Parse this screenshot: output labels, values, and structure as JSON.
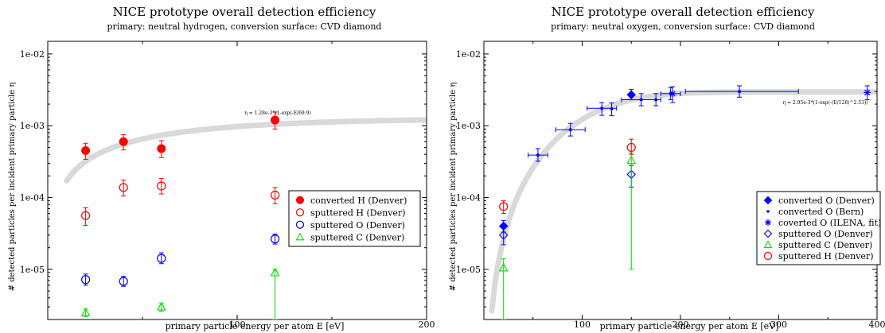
{
  "chart_data": [
    {
      "type": "scatter",
      "title": "NICE prototype overall detection efficiency",
      "subtitle": "primary: neutral hydrogen, conversion surface: CVD diamond",
      "xlabel": "primary particle energy per atom E [eV]",
      "ylabel": "# detected particles per incident primary particle η",
      "xlim": [
        0,
        200
      ],
      "ylim": [
        2e-06,
        0.015
      ],
      "yscale": "log",
      "xticks": [
        {
          "value": 0,
          "label": ""
        },
        {
          "value": 100,
          "label": "100"
        },
        {
          "value": 200,
          "label": "200"
        }
      ],
      "yticks": [
        {
          "value": 1e-05,
          "label": "1e-05"
        },
        {
          "value": 0.0001,
          "label": "1e-04"
        },
        {
          "value": 0.001,
          "label": "1e-03"
        },
        {
          "value": 0.01,
          "label": "1e-02"
        }
      ],
      "grid": false,
      "legend_position": "bottom-right",
      "fit": {
        "label": "η = 1.28e-3*(1-exp(-E/69.9)",
        "A": 0.00128,
        "E0": 69.9,
        "p": 1,
        "x_from": 10,
        "x_to": 200,
        "color": "#d9d9d9"
      },
      "series": [
        {
          "name": "converted H (Denver)",
          "marker": "circle-filled",
          "color": "#ff0000",
          "points": [
            {
              "x": 20,
              "y": 0.00045,
              "ylo": 0.00034,
              "yhi": 0.00057
            },
            {
              "x": 40,
              "y": 0.0006,
              "ylo": 0.00046,
              "yhi": 0.00075
            },
            {
              "x": 60,
              "y": 0.00048,
              "ylo": 0.00036,
              "yhi": 0.00062
            },
            {
              "x": 120,
              "y": 0.0012,
              "ylo": 0.0009,
              "yhi": 0.00155
            }
          ]
        },
        {
          "name": "sputtered H (Denver)",
          "marker": "circle-open",
          "color": "#ff0000",
          "points": [
            {
              "x": 20,
              "y": 5.6e-05,
              "ylo": 4.1e-05,
              "yhi": 7.2e-05
            },
            {
              "x": 40,
              "y": 0.000138,
              "ylo": 0.000105,
              "yhi": 0.000175
            },
            {
              "x": 60,
              "y": 0.000145,
              "ylo": 0.000112,
              "yhi": 0.000185
            },
            {
              "x": 120,
              "y": 0.000108,
              "ylo": 8.2e-05,
              "yhi": 0.000138
            }
          ]
        },
        {
          "name": "sputtered O (Denver)",
          "marker": "circle-open",
          "color": "#0000ff",
          "points": [
            {
              "x": 20,
              "y": 7.2e-06,
              "ylo": 6e-06,
              "yhi": 8.6e-06
            },
            {
              "x": 40,
              "y": 6.8e-06,
              "ylo": 5.8e-06,
              "yhi": 8e-06
            },
            {
              "x": 60,
              "y": 1.42e-05,
              "ylo": 1.2e-05,
              "yhi": 1.7e-05
            },
            {
              "x": 120,
              "y": 2.65e-05,
              "ylo": 2.25e-05,
              "yhi": 3.1e-05
            }
          ]
        },
        {
          "name": "sputtered C (Denver)",
          "marker": "triangle-open",
          "color": "#00dd00",
          "points": [
            {
              "x": 20,
              "y": 2.5e-06,
              "ylo": 2.2e-06,
              "yhi": 2.8e-06
            },
            {
              "x": 60,
              "y": 3e-06,
              "ylo": 2.6e-06,
              "yhi": 3.4e-06
            },
            {
              "x": 120,
              "y": 9e-06,
              "ylo": 2e-06,
              "yhi": 1e-05
            }
          ]
        }
      ]
    },
    {
      "type": "scatter",
      "title": "NICE prototype overall detection efficiency",
      "subtitle": "primary: neutral oxygen, conversion surface: CVD diamond",
      "xlabel": "primary particle energy per atom E [eV]",
      "ylabel": "# detected particles per incident primary particle η",
      "xlim": [
        0,
        400
      ],
      "ylim": [
        2e-06,
        0.015
      ],
      "yscale": "log",
      "xticks": [
        {
          "value": 0,
          "label": ""
        },
        {
          "value": 100,
          "label": "100"
        },
        {
          "value": 200,
          "label": "200"
        },
        {
          "value": 300,
          "label": "300"
        },
        {
          "value": 400,
          "label": "400"
        }
      ],
      "yticks": [
        {
          "value": 1e-05,
          "label": "1e-05"
        },
        {
          "value": 0.0001,
          "label": "1e-04"
        },
        {
          "value": 0.001,
          "label": "1e-03"
        },
        {
          "value": 0.01,
          "label": "1e-02"
        }
      ],
      "grid": false,
      "legend_position": "bottom-right",
      "fit": {
        "label": "η = 2.95e-3*(1-exp(-(E/128)^2.53))",
        "A": 0.00295,
        "E0": 128,
        "p": 2.53,
        "x_from": 8,
        "x_to": 400,
        "color": "#d9d9d9"
      },
      "series": [
        {
          "name": "converted O (Denver)",
          "marker": "diamond-filled",
          "color": "#0000ff",
          "points": [
            {
              "x": 20,
              "y": 4e-05,
              "ylo": 3.3e-05,
              "yhi": 4.8e-05
            },
            {
              "x": 150,
              "y": 0.0027,
              "ylo": 0.0023,
              "yhi": 0.0032
            }
          ]
        },
        {
          "name": "converted O (Bern)",
          "marker": "dot",
          "color": "#0000ff",
          "points": [
            {
              "x": 55,
              "y": 0.00039,
              "ylo": 0.00032,
              "yhi": 0.00048,
              "xlo": 45,
              "xhi": 65
            },
            {
              "x": 88,
              "y": 0.00088,
              "ylo": 0.00072,
              "yhi": 0.00108,
              "xlo": 73,
              "xhi": 103
            },
            {
              "x": 120,
              "y": 0.00175,
              "ylo": 0.0014,
              "yhi": 0.0021,
              "xlo": 105,
              "xhi": 135
            },
            {
              "x": 130,
              "y": 0.00172,
              "ylo": 0.00138,
              "yhi": 0.00208
            },
            {
              "x": 160,
              "y": 0.0023,
              "ylo": 0.0019,
              "yhi": 0.0028,
              "xlo": 140,
              "xhi": 180
            },
            {
              "x": 175,
              "y": 0.0023,
              "ylo": 0.0019,
              "yhi": 0.0028
            },
            {
              "x": 190,
              "y": 0.0028,
              "ylo": 0.0023,
              "yhi": 0.0034,
              "xlo": 180,
              "xhi": 200
            },
            {
              "x": 260,
              "y": 0.003,
              "ylo": 0.0025,
              "yhi": 0.0036,
              "xlo": 205,
              "xhi": 320
            }
          ]
        },
        {
          "name": "coverted O (ILENA, fit)",
          "marker": "star",
          "color": "#0000ff",
          "points": [
            {
              "x": 192,
              "y": 0.0028,
              "ylo": 0.0021,
              "yhi": 0.0035
            },
            {
              "x": 390,
              "y": 0.0029,
              "ylo": 0.0023,
              "yhi": 0.0036
            }
          ]
        },
        {
          "name": "sputtered O (Denver)",
          "marker": "diamond-open",
          "color": "#0000ff",
          "points": [
            {
              "x": 20,
              "y": 3e-05,
              "ylo": 2.2e-05,
              "yhi": 3.8e-05
            },
            {
              "x": 150,
              "y": 0.00021,
              "ylo": 0.00014,
              "yhi": 0.00028
            }
          ]
        },
        {
          "name": "sputtered C (Denver)",
          "marker": "triangle-open",
          "color": "#00dd00",
          "points": [
            {
              "x": 20,
              "y": 1.05e-05,
              "ylo": 2e-06,
              "yhi": 1.4e-05
            },
            {
              "x": 150,
              "y": 0.00033,
              "ylo": 1e-05,
              "yhi": 0.00042
            }
          ]
        },
        {
          "name": "sputtered H (Denver)",
          "marker": "circle-open",
          "color": "#ff0000",
          "points": [
            {
              "x": 20,
              "y": 7.5e-05,
              "ylo": 6e-05,
              "yhi": 9e-05
            },
            {
              "x": 150,
              "y": 0.0005,
              "ylo": 0.0004,
              "yhi": 0.00065
            }
          ]
        }
      ]
    }
  ]
}
